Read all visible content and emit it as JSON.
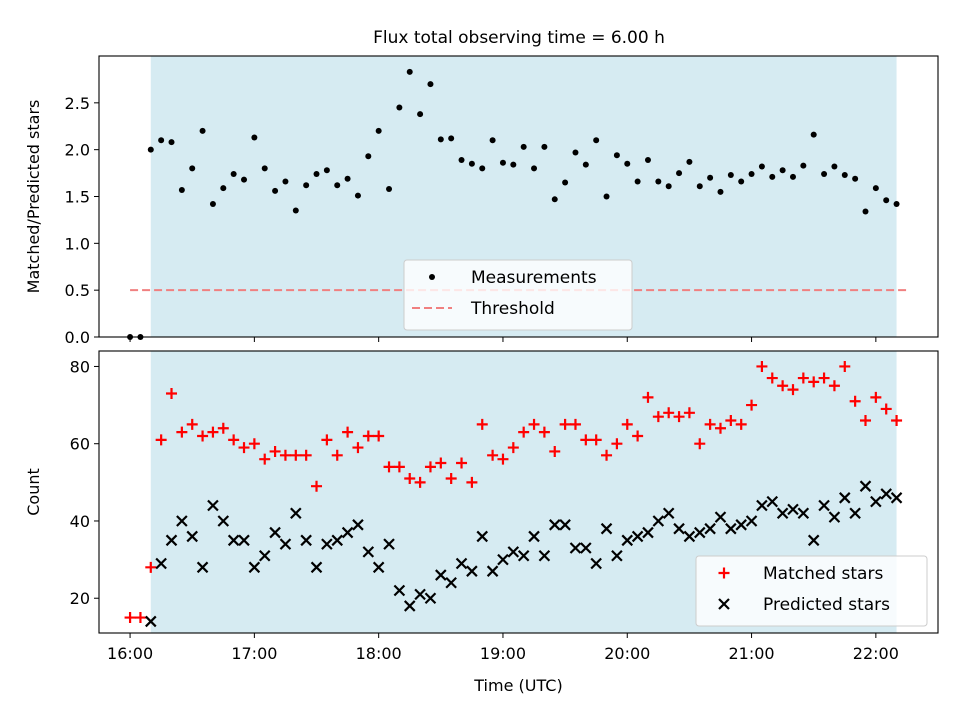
{
  "title": "Flux total observing time = 6.00 h",
  "shade_color": "#add8e6",
  "chart_data": [
    {
      "type": "scatter",
      "ylabel": "Matched/Predicted stars",
      "xlabel": "",
      "ylim": [
        0,
        3.0
      ],
      "yticks": [
        "0.0",
        "0.5",
        "1.0",
        "1.5",
        "2.0",
        "2.5"
      ],
      "shaded_region": [
        "16:10",
        "22:10"
      ],
      "legend_position": "lower-center",
      "threshold": {
        "name": "Threshold",
        "value": 0.5,
        "x_range": [
          "16:00",
          "22:15"
        ],
        "color": "#f08080",
        "style": "dashed"
      },
      "series": [
        {
          "name": "Measurements",
          "color": "#000000",
          "marker": "dot",
          "x": [
            "16:00",
            "16:05",
            "16:10",
            "16:15",
            "16:20",
            "16:25",
            "16:30",
            "16:35",
            "16:40",
            "16:45",
            "16:50",
            "16:55",
            "17:00",
            "17:05",
            "17:10",
            "17:15",
            "17:20",
            "17:25",
            "17:30",
            "17:35",
            "17:40",
            "17:45",
            "17:50",
            "17:55",
            "18:00",
            "18:05",
            "18:10",
            "18:15",
            "18:20",
            "18:25",
            "18:30",
            "18:35",
            "18:40",
            "18:45",
            "18:50",
            "18:55",
            "19:00",
            "19:05",
            "19:10",
            "19:15",
            "19:20",
            "19:25",
            "19:30",
            "19:35",
            "19:40",
            "19:45",
            "19:50",
            "19:55",
            "20:00",
            "20:05",
            "20:10",
            "20:15",
            "20:20",
            "20:25",
            "20:30",
            "20:35",
            "20:40",
            "20:45",
            "20:50",
            "20:55",
            "21:00",
            "21:05",
            "21:10",
            "21:15",
            "21:20",
            "21:25",
            "21:30",
            "21:35",
            "21:40",
            "21:45",
            "21:50",
            "21:55",
            "22:00",
            "22:05",
            "22:10"
          ],
          "y": [
            0.0,
            0.0,
            2.0,
            2.1,
            2.08,
            1.57,
            1.8,
            2.2,
            1.42,
            1.59,
            1.74,
            1.68,
            2.13,
            1.8,
            1.56,
            1.66,
            1.35,
            1.62,
            1.74,
            1.78,
            1.62,
            1.69,
            1.51,
            1.93,
            2.2,
            1.58,
            2.45,
            2.83,
            2.38,
            2.7,
            2.11,
            2.12,
            1.89,
            1.85,
            1.8,
            2.1,
            1.86,
            1.84,
            2.03,
            1.8,
            2.03,
            1.47,
            1.65,
            1.97,
            1.84,
            2.1,
            1.5,
            1.94,
            1.85,
            1.66,
            1.89,
            1.66,
            1.61,
            1.75,
            1.87,
            1.61,
            1.7,
            1.55,
            1.73,
            1.66,
            1.74,
            1.82,
            1.71,
            1.78,
            1.71,
            1.83,
            2.16,
            1.74,
            1.82,
            1.73,
            1.69,
            1.34,
            1.59,
            1.46,
            1.42
          ]
        }
      ]
    },
    {
      "type": "scatter",
      "ylabel": "Count",
      "xlabel": "Time (UTC)",
      "ylim": [
        11,
        84
      ],
      "yticks": [
        "20",
        "40",
        "60",
        "80"
      ],
      "xticks": [
        "16:00",
        "17:00",
        "18:00",
        "19:00",
        "20:00",
        "21:00",
        "22:00"
      ],
      "shaded_region": [
        "16:10",
        "22:10"
      ],
      "legend_position": "lower-right",
      "series": [
        {
          "name": "Matched stars",
          "color": "#ff0000",
          "marker": "plus",
          "x": [
            "16:00",
            "16:05",
            "16:10",
            "16:15",
            "16:20",
            "16:25",
            "16:30",
            "16:35",
            "16:40",
            "16:45",
            "16:50",
            "16:55",
            "17:00",
            "17:05",
            "17:10",
            "17:15",
            "17:20",
            "17:25",
            "17:30",
            "17:35",
            "17:40",
            "17:45",
            "17:50",
            "17:55",
            "18:00",
            "18:05",
            "18:10",
            "18:15",
            "18:20",
            "18:25",
            "18:30",
            "18:35",
            "18:40",
            "18:45",
            "18:50",
            "18:55",
            "19:00",
            "19:05",
            "19:10",
            "19:15",
            "19:20",
            "19:25",
            "19:30",
            "19:35",
            "19:40",
            "19:45",
            "19:50",
            "19:55",
            "20:00",
            "20:05",
            "20:10",
            "20:15",
            "20:20",
            "20:25",
            "20:30",
            "20:35",
            "20:40",
            "20:45",
            "20:50",
            "20:55",
            "21:00",
            "21:05",
            "21:10",
            "21:15",
            "21:20",
            "21:25",
            "21:30",
            "21:35",
            "21:40",
            "21:45",
            "21:50",
            "21:55",
            "22:00",
            "22:05",
            "22:10"
          ],
          "y": [
            15,
            15,
            28,
            61,
            73,
            63,
            65,
            62,
            63,
            64,
            61,
            59,
            60,
            56,
            58,
            57,
            57,
            57,
            49,
            61,
            57,
            63,
            59,
            62,
            62,
            54,
            54,
            51,
            50,
            54,
            55,
            51,
            55,
            50,
            65,
            57,
            56,
            59,
            63,
            65,
            63,
            58,
            65,
            65,
            61,
            61,
            57,
            60,
            65,
            62,
            72,
            67,
            68,
            67,
            68,
            60,
            65,
            64,
            66,
            65,
            70,
            80,
            77,
            75,
            74,
            77,
            76,
            77,
            75,
            80,
            71,
            66,
            72,
            69,
            66
          ]
        },
        {
          "name": "Predicted stars",
          "color": "#000000",
          "marker": "x",
          "x": [
            "16:10",
            "16:15",
            "16:20",
            "16:25",
            "16:30",
            "16:35",
            "16:40",
            "16:45",
            "16:50",
            "16:55",
            "17:00",
            "17:05",
            "17:10",
            "17:15",
            "17:20",
            "17:25",
            "17:30",
            "17:35",
            "17:40",
            "17:45",
            "17:50",
            "17:55",
            "18:00",
            "18:05",
            "18:10",
            "18:15",
            "18:20",
            "18:25",
            "18:30",
            "18:35",
            "18:40",
            "18:45",
            "18:50",
            "18:55",
            "19:00",
            "19:05",
            "19:10",
            "19:15",
            "19:20",
            "19:25",
            "19:30",
            "19:35",
            "19:40",
            "19:45",
            "19:50",
            "19:55",
            "20:00",
            "20:05",
            "20:10",
            "20:15",
            "20:20",
            "20:25",
            "20:30",
            "20:35",
            "20:40",
            "20:45",
            "20:50",
            "20:55",
            "21:00",
            "21:05",
            "21:10",
            "21:15",
            "21:20",
            "21:25",
            "21:30",
            "21:35",
            "21:40",
            "21:45",
            "21:50",
            "21:55",
            "22:00",
            "22:05",
            "22:10"
          ],
          "y": [
            14,
            29,
            35,
            40,
            36,
            28,
            44,
            40,
            35,
            35,
            28,
            31,
            37,
            34,
            42,
            35,
            28,
            34,
            35,
            37,
            39,
            32,
            28,
            34,
            22,
            18,
            21,
            20,
            26,
            24,
            29,
            27,
            36,
            27,
            30,
            32,
            31,
            36,
            31,
            39,
            39,
            33,
            33,
            29,
            38,
            31,
            35,
            36,
            37,
            40,
            42,
            38,
            36,
            37,
            38,
            41,
            38,
            39,
            40,
            44,
            45,
            42,
            43,
            42,
            35,
            44,
            41,
            46,
            42,
            49,
            45,
            47,
            46
          ]
        }
      ]
    }
  ]
}
